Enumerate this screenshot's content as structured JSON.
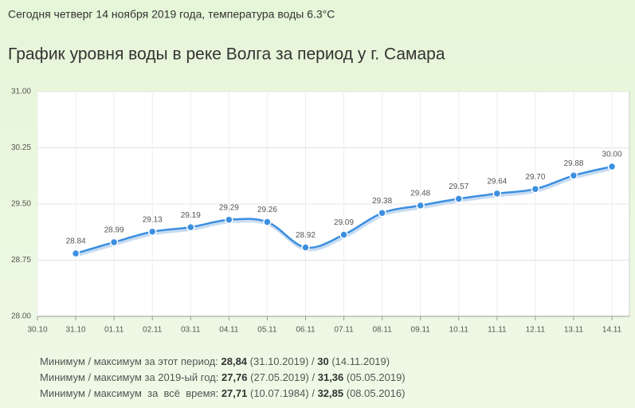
{
  "header": "Сегодня четверг 14 ноября 2019 года, температура воды 6.3°C",
  "chart_data": {
    "type": "line",
    "title": "График уровня воды в реке Волга за период у г. Самара",
    "categories": [
      "30.10",
      "31.10",
      "01.11",
      "02.11",
      "03.11",
      "04.11",
      "05.11",
      "06.11",
      "07.11",
      "08.11",
      "09.11",
      "10.11",
      "11.11",
      "12.11",
      "13.11",
      "14.11"
    ],
    "values": [
      null,
      28.84,
      28.99,
      29.13,
      29.19,
      29.29,
      29.26,
      28.92,
      29.09,
      29.38,
      29.48,
      29.57,
      29.64,
      29.7,
      29.88,
      30.0
    ],
    "value_labels": [
      null,
      "28.84",
      "28.99",
      "29.13",
      "29.19",
      "29.29",
      "29.26",
      "28.92",
      "29.09",
      "29.38",
      "29.48",
      "29.57",
      "29.64",
      "29.70",
      "29.88",
      "30.00"
    ],
    "color": "#3c8fe0",
    "ylim": [
      28,
      31
    ],
    "yticks": [
      {
        "value": 28,
        "label": "28.00"
      },
      {
        "value": 28.75,
        "label": "28.75"
      },
      {
        "value": 29.5,
        "label": "29.50"
      },
      {
        "value": 30.25,
        "label": "30.25"
      },
      {
        "value": 31,
        "label": "31.00"
      }
    ],
    "grid": true
  },
  "stats": [
    {
      "label": "Минимум / максимум за этот период:",
      "min": "28,84",
      "min_date": "(31.10.2019) /",
      "max": "30",
      "max_date": "(14.11.2019)"
    },
    {
      "label": "Минимум / максимум за 2019-ый год:",
      "min": "27,76",
      "min_date": "(27.05.2019) /",
      "max": "31,36",
      "max_date": "(05.05.2019)"
    },
    {
      "label": "Минимум / максимум  за  всё  время:",
      "min": "27,71",
      "min_date": "(10.07.1984) /",
      "max": "32,85",
      "max_date": "(08.05.2016)"
    }
  ]
}
